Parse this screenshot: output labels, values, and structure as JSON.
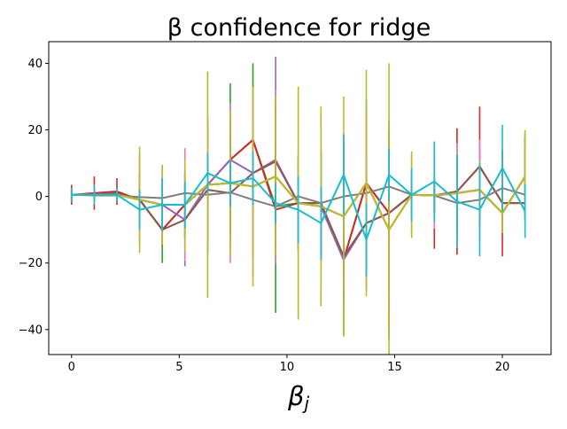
{
  "chart_data": {
    "type": "line",
    "title": "β confidence for ridge",
    "xlabel": "β",
    "xlabel_subscript": "j",
    "ylabel": "",
    "xlim": [
      -1.06,
      22.26
    ],
    "ylim": [
      -47.5,
      46.5
    ],
    "xticks": [
      0,
      5,
      10,
      15,
      20
    ],
    "yticks": [
      -40,
      -20,
      0,
      20,
      40
    ],
    "grid": false,
    "x": [
      0,
      1.053,
      2.105,
      3.158,
      4.211,
      5.263,
      6.316,
      7.368,
      8.421,
      9.474,
      10.526,
      11.579,
      12.632,
      13.684,
      14.737,
      15.789,
      16.842,
      17.895,
      18.947,
      20.0,
      21.053
    ],
    "series": [
      {
        "color": "#1f77b4",
        "values": [
          0.5,
          0.5,
          0.5,
          -1,
          -2.5,
          -2.5,
          3.5,
          4,
          3,
          6,
          -2,
          -3,
          -6,
          4,
          -10,
          0.5,
          0.3,
          1,
          2,
          -5,
          6
        ],
        "errors": [
          2,
          2,
          2,
          8,
          8,
          10,
          20,
          18,
          22,
          22,
          15,
          18,
          25,
          25,
          33,
          8,
          5,
          12,
          8,
          6,
          13
        ]
      },
      {
        "color": "#ff7f0e",
        "values": [
          0.5,
          0.5,
          0.5,
          -1,
          -2.5,
          -2.5,
          3.5,
          4,
          3,
          6,
          -2,
          -3,
          -6,
          4,
          -10,
          0.5,
          0.3,
          1,
          2,
          -5,
          6
        ],
        "errors": [
          2,
          2,
          2,
          8,
          7,
          9,
          18,
          16,
          20,
          20,
          14,
          16,
          22,
          22,
          30,
          7,
          5,
          11,
          7,
          6,
          12
        ]
      },
      {
        "color": "#2ca02c",
        "values": [
          0.5,
          0.5,
          0.5,
          -1,
          -10,
          -2.5,
          3.5,
          11,
          17,
          -3,
          -2,
          -3,
          -19,
          4,
          -5,
          0.5,
          0.3,
          1,
          2,
          -5,
          6
        ],
        "errors": [
          2,
          2,
          2,
          8,
          10,
          10,
          20,
          23,
          23,
          32,
          14,
          16,
          23,
          20,
          25,
          7,
          5,
          11,
          7,
          6,
          12
        ]
      },
      {
        "color": "#d62728",
        "values": [
          0.5,
          1,
          1.5,
          -1,
          -10,
          -2.5,
          3.5,
          11,
          17,
          -4,
          -2,
          -2,
          -19,
          4,
          -5,
          0.5,
          0.3,
          1.5,
          9,
          -2,
          -2
        ],
        "errors": [
          3,
          5,
          4,
          8,
          4,
          5,
          5,
          3,
          2,
          6,
          3,
          3,
          4,
          4,
          2,
          2,
          16,
          19,
          18,
          16,
          5
        ]
      },
      {
        "color": "#9467bd",
        "values": [
          0.5,
          0.5,
          0.5,
          -1,
          -2.5,
          -7,
          3.5,
          11,
          7,
          11,
          -2,
          -3,
          -19,
          -8,
          -5,
          0.5,
          0.3,
          1,
          2,
          -5,
          6
        ],
        "errors": [
          2,
          2,
          2,
          8,
          6,
          14,
          20,
          12,
          22,
          31,
          14,
          16,
          15,
          20,
          25,
          7,
          5,
          11,
          7,
          6,
          12
        ]
      },
      {
        "color": "#8c564b",
        "values": [
          0.5,
          0.5,
          1,
          -1,
          -10,
          -7,
          2,
          1,
          7,
          10.5,
          -2,
          -2,
          -18,
          -8,
          -5,
          0.5,
          0.3,
          1.5,
          9,
          -2,
          -2
        ],
        "errors": [
          2,
          2,
          2,
          5,
          4,
          5,
          4,
          4,
          3,
          4,
          3,
          3,
          3,
          4,
          3,
          2,
          2,
          3,
          4,
          3,
          3
        ]
      },
      {
        "color": "#e377c2",
        "values": [
          0.5,
          0.5,
          0.5,
          -1,
          -2.5,
          -2.5,
          3.5,
          4,
          3,
          6,
          -2,
          -3,
          -6,
          4,
          -10,
          0.5,
          0.3,
          1,
          2,
          -5,
          6
        ],
        "errors": [
          2,
          2,
          2,
          14,
          12,
          17,
          34,
          24,
          27,
          26,
          34,
          24,
          22,
          22,
          25,
          12,
          10,
          15,
          15,
          6,
          8
        ]
      },
      {
        "color": "#7f7f7f",
        "values": [
          0.5,
          0.3,
          0.3,
          -0.2,
          -0.5,
          1,
          0.5,
          1.2,
          -1,
          -3,
          0,
          -2,
          0,
          1,
          3,
          0.5,
          0.3,
          -2,
          -1,
          2.5,
          0.5
        ],
        "errors": [
          1,
          1,
          1,
          1,
          1,
          1,
          1,
          1,
          1,
          1,
          1,
          1,
          1,
          1,
          1,
          1,
          1,
          1,
          1,
          1,
          1
        ]
      },
      {
        "color": "#bcbd22",
        "values": [
          0.5,
          0.5,
          0.5,
          -1,
          -2.5,
          -2.5,
          3.5,
          4,
          3,
          6,
          -2,
          -3,
          -6,
          4,
          -10,
          0.5,
          0.3,
          1,
          2,
          -5,
          6
        ],
        "errors": [
          2,
          2,
          2,
          16,
          12,
          14,
          34,
          22,
          30,
          24,
          35,
          30,
          36,
          34,
          50,
          13,
          8,
          12,
          9,
          6,
          14
        ]
      },
      {
        "color": "#17becf",
        "values": [
          0.5,
          0.5,
          0.5,
          -4,
          -2.5,
          -2.5,
          7,
          4,
          5.5,
          -2,
          -4,
          -8,
          6.5,
          -13,
          6.5,
          0.5,
          4.5,
          -1.5,
          -4,
          8.5,
          -4.5
        ],
        "errors": [
          2,
          3,
          2,
          6,
          8,
          7,
          6,
          7,
          8,
          6,
          10,
          11,
          12,
          11,
          8,
          8,
          12,
          14,
          14,
          13,
          8
        ]
      }
    ]
  }
}
